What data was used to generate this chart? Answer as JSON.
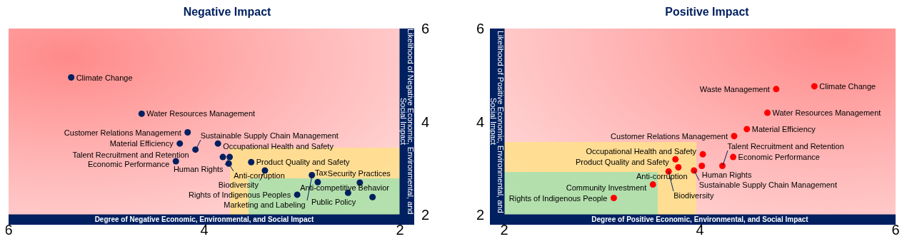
{
  "chart_data": [
    {
      "type": "scatter",
      "title": "Negative Impact",
      "xlabel": "Degree of Negative Economic, Environmental, and Social Impact",
      "ylabel": "Likelihood of Negative Economic, Environmental, and Social Impact",
      "xlim": [
        6,
        2
      ],
      "ylim": [
        2,
        6
      ],
      "xticks": [
        6,
        4,
        2
      ],
      "yticks": [
        2,
        4,
        6
      ],
      "marker": "circle",
      "series": [
        {
          "color": "#002060",
          "x": [
            5.36,
            4.64,
            4.17,
            4.25,
            4.09,
            4.29,
            3.86,
            3.81,
            3.74,
            3.75,
            3.52,
            3.38,
            2.9,
            2.84,
            2.41,
            2.53,
            2.28,
            3.05
          ],
          "values": [
            4.95,
            4.17,
            3.77,
            3.53,
            3.4,
            3.15,
            3.53,
            3.24,
            3.24,
            3.1,
            3.13,
            2.95,
            2.85,
            2.7,
            2.69,
            2.47,
            2.38,
            2.43
          ]
        }
      ],
      "annotations": [
        {
          "text": "Climate Change",
          "x": 5.36,
          "y": 4.95
        },
        {
          "text": "Water Resources Management",
          "x": 4.64,
          "y": 4.17
        },
        {
          "text": "Customer Relations Management",
          "x": 4.17,
          "y": 3.77
        },
        {
          "text": "Material Efficiency",
          "x": 4.25,
          "y": 3.53
        },
        {
          "text": "Talent Recruitment and Retention",
          "x": 4.09,
          "y": 3.4
        },
        {
          "text": "Sustainable Supply Chain Management",
          "x": 4.09,
          "y": 3.4
        },
        {
          "text": "Economic Performance",
          "x": 4.29,
          "y": 3.15
        },
        {
          "text": "Occupational Health and Safety",
          "x": 3.86,
          "y": 3.53
        },
        {
          "text": "Human Rights",
          "x": 3.74,
          "y": 3.24
        },
        {
          "text": "Anti-corruption",
          "x": 3.75,
          "y": 3.1
        },
        {
          "text": "Product Quality and Safety",
          "x": 3.52,
          "y": 3.13
        },
        {
          "text": "Biodiversity",
          "x": 3.38,
          "y": 2.95
        },
        {
          "text": "Marketing and Labeling",
          "x": 2.9,
          "y": 2.85
        },
        {
          "text": "Tax",
          "x": 2.84,
          "y": 2.7
        },
        {
          "text": "Security Practices",
          "x": 2.41,
          "y": 2.69
        },
        {
          "text": "Public Policy",
          "x": 2.53,
          "y": 2.47
        },
        {
          "text": "Anti-competitive Behavior",
          "x": 2.28,
          "y": 2.38
        },
        {
          "text": "Rights of Indigenous Peoples",
          "x": 3.05,
          "y": 2.43
        }
      ]
    },
    {
      "type": "scatter",
      "title": "Positive Impact",
      "xlabel": "Degree of Positive Economic, Environmental, and Social Impact",
      "ylabel": "Likelihood of Positive Economic, Environmental, and Social Impact",
      "xlim": [
        2,
        6
      ],
      "ylim": [
        2,
        6
      ],
      "xticks": [
        2,
        4,
        6
      ],
      "yticks": [
        2,
        4,
        6
      ],
      "marker": "circle",
      "series": [
        {
          "color": "#ff0000",
          "x": [
            5.17,
            4.78,
            4.69,
            4.48,
            4.35,
            4.03,
            4.34,
            4.02,
            4.23,
            3.94,
            3.75,
            3.78,
            3.68,
            3.52,
            3.12
          ],
          "values": [
            4.76,
            4.7,
            4.19,
            3.84,
            3.69,
            3.3,
            3.24,
            3.05,
            3.05,
            2.95,
            3.19,
            3.02,
            2.93,
            2.65,
            2.36
          ]
        }
      ],
      "annotations": [
        {
          "text": "Climate Change",
          "x": 5.17,
          "y": 4.76
        },
        {
          "text": "Waste Management",
          "x": 4.78,
          "y": 4.7
        },
        {
          "text": "Water Resources Management",
          "x": 4.69,
          "y": 4.19
        },
        {
          "text": "Material Efficiency",
          "x": 4.48,
          "y": 3.84
        },
        {
          "text": "Customer Relations Management",
          "x": 4.35,
          "y": 3.69
        },
        {
          "text": "Occupational Health and Safety",
          "x": 4.03,
          "y": 3.3
        },
        {
          "text": "Economic Performance",
          "x": 4.34,
          "y": 3.24
        },
        {
          "text": "Human Rights",
          "x": 4.02,
          "y": 3.05
        },
        {
          "text": "Talent Recruitment and Retention",
          "x": 4.23,
          "y": 3.05
        },
        {
          "text": "Sustainable Supply Chain Management",
          "x": 3.94,
          "y": 2.95
        },
        {
          "text": "Product Quality and Safety",
          "x": 3.75,
          "y": 3.19
        },
        {
          "text": "Anti-corruption",
          "x": 3.78,
          "y": 3.02
        },
        {
          "text": "Biodiversity",
          "x": 3.68,
          "y": 2.93
        },
        {
          "text": "Community Investment",
          "x": 3.52,
          "y": 2.65
        },
        {
          "text": "Rights of Indigenous People",
          "x": 3.12,
          "y": 2.36
        }
      ]
    }
  ]
}
